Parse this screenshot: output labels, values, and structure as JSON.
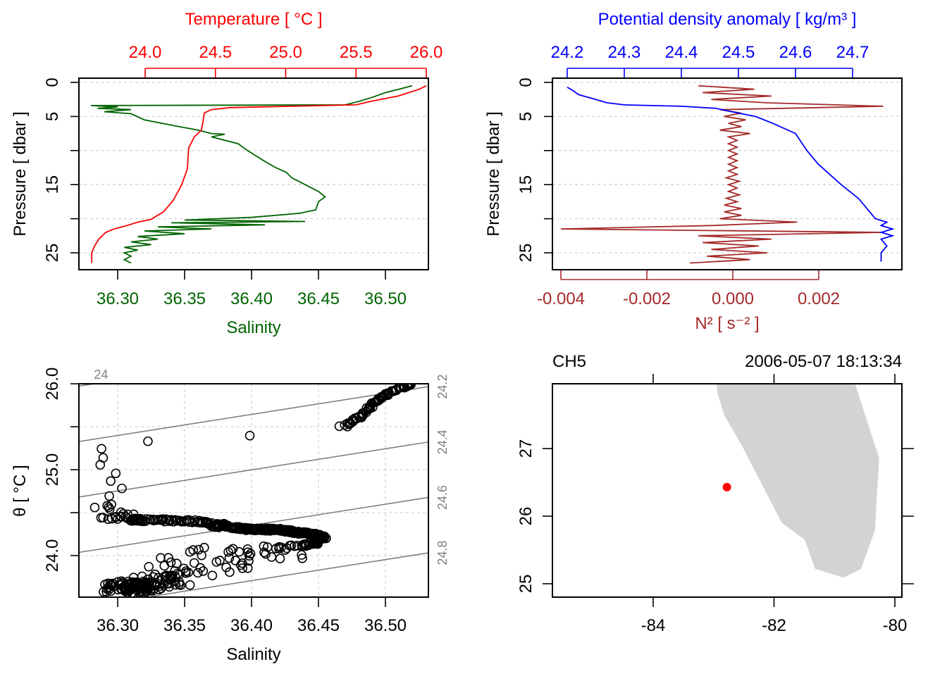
{
  "colors": {
    "temperature": "#FF0000",
    "salinity": "#006400",
    "density": "#0000FF",
    "n2": "#A52A2A",
    "isopycnal": "#808080",
    "land": "#D3D3D3",
    "station": "#FF0000"
  },
  "chart_data": [
    {
      "type": "line",
      "title": "Temperature [ °C ]",
      "xlabel_top": "Temperature [ °C ]",
      "xlabel_bottom": "Salinity",
      "ylabel": "Pressure [ dbar ]",
      "temperature_ticks": [
        "24.0",
        "24.5",
        "25.0",
        "25.5",
        "26.0"
      ],
      "salinity_ticks": [
        "36.30",
        "36.35",
        "36.40",
        "36.45",
        "36.50"
      ],
      "pressure_ticks": [
        "0",
        "5",
        "15",
        "25"
      ],
      "ylim": [
        27,
        0
      ],
      "series": [
        {
          "name": "Temperature",
          "axis": "top",
          "points": [
            [
              0.5,
              26.0
            ],
            [
              1,
              25.95
            ],
            [
              2,
              25.8
            ],
            [
              2.8,
              25.6
            ],
            [
              3.3,
              25.5
            ],
            [
              3.7,
              24.6
            ],
            [
              4,
              24.47
            ],
            [
              4.5,
              24.42
            ],
            [
              6,
              24.41
            ],
            [
              7,
              24.4
            ],
            [
              8,
              24.35
            ],
            [
              9.6,
              24.31
            ],
            [
              12.7,
              24.3
            ],
            [
              15,
              24.26
            ],
            [
              17.3,
              24.2
            ],
            [
              19,
              24.13
            ],
            [
              20.1,
              24.04
            ],
            [
              20.5,
              23.95
            ],
            [
              21,
              23.87
            ],
            [
              21.5,
              23.78
            ],
            [
              22,
              23.72
            ],
            [
              23,
              23.67
            ],
            [
              24,
              23.64
            ],
            [
              25,
              23.62
            ],
            [
              26.5,
              23.62
            ]
          ]
        },
        {
          "name": "Salinity",
          "axis": "bottom",
          "points": [
            [
              0.5,
              36.52
            ],
            [
              1,
              36.51
            ],
            [
              1.5,
              36.5
            ],
            [
              2.2,
              36.49
            ],
            [
              2.8,
              36.48
            ],
            [
              3.3,
              36.47
            ],
            [
              3.4,
              36.28
            ],
            [
              3.6,
              36.3
            ],
            [
              3.8,
              36.285
            ],
            [
              4,
              36.31
            ],
            [
              4.3,
              36.29
            ],
            [
              4.6,
              36.31
            ],
            [
              5.5,
              36.32
            ],
            [
              6.5,
              36.346
            ],
            [
              7,
              36.36
            ],
            [
              7.5,
              36.37
            ],
            [
              7.6,
              36.38
            ],
            [
              8,
              36.37
            ],
            [
              9,
              36.39
            ],
            [
              10,
              36.397
            ],
            [
              11.6,
              36.41
            ],
            [
              12.5,
              36.418
            ],
            [
              13.2,
              36.426
            ],
            [
              14,
              36.43
            ],
            [
              15,
              36.44
            ],
            [
              16,
              36.45
            ],
            [
              16.8,
              36.455
            ],
            [
              17.5,
              36.45
            ],
            [
              18.7,
              36.448
            ],
            [
              19.2,
              36.436
            ],
            [
              19.8,
              36.4
            ],
            [
              20.2,
              36.35
            ],
            [
              20.4,
              36.44
            ],
            [
              20.6,
              36.34
            ],
            [
              20.9,
              36.41
            ],
            [
              21.2,
              36.33
            ],
            [
              21.5,
              36.37
            ],
            [
              21.8,
              36.32
            ],
            [
              22.2,
              36.35
            ],
            [
              22.6,
              36.315
            ],
            [
              23,
              36.33
            ],
            [
              23.4,
              36.31
            ],
            [
              23.8,
              36.325
            ],
            [
              24.2,
              36.305
            ],
            [
              24.6,
              36.315
            ],
            [
              25,
              36.305
            ],
            [
              25.5,
              36.31
            ],
            [
              26,
              36.305
            ],
            [
              26.5,
              36.31
            ]
          ]
        }
      ]
    },
    {
      "type": "line",
      "xlabel_top": "Potential density anomaly [ kg/m³ ]",
      "xlabel_bottom": "N² [ s⁻² ]",
      "ylabel": "Pressure [ dbar ]",
      "density_ticks": [
        "24.2",
        "24.3",
        "24.4",
        "24.5",
        "24.6",
        "24.7"
      ],
      "n2_ticks": [
        "-0.004",
        "-0.002",
        "0.000",
        "0.002"
      ],
      "pressure_ticks": [
        "0",
        "5",
        "15",
        "25"
      ],
      "series": [
        {
          "name": "Potential density anomaly",
          "axis": "top",
          "points": [
            [
              0.7,
              24.2
            ],
            [
              1.2,
              24.21
            ],
            [
              1.8,
              24.22
            ],
            [
              2.5,
              24.25
            ],
            [
              3,
              24.27
            ],
            [
              3.3,
              24.3
            ],
            [
              3.5,
              24.4
            ],
            [
              3.8,
              24.46
            ],
            [
              4.5,
              24.5
            ],
            [
              5,
              24.53
            ],
            [
              6,
              24.56
            ],
            [
              7.5,
              24.6
            ],
            [
              10,
              24.62
            ],
            [
              12,
              24.64
            ],
            [
              13.5,
              24.66
            ],
            [
              15,
              24.68
            ],
            [
              17,
              24.71
            ],
            [
              18,
              24.72
            ],
            [
              19,
              24.73
            ],
            [
              20,
              24.74
            ],
            [
              20.5,
              24.76
            ],
            [
              21,
              24.75
            ],
            [
              21.5,
              24.77
            ],
            [
              22,
              24.75
            ],
            [
              22.5,
              24.77
            ],
            [
              23,
              24.75
            ],
            [
              24,
              24.76
            ],
            [
              25,
              24.75
            ],
            [
              26.3,
              24.75
            ]
          ]
        },
        {
          "name": "N2",
          "axis": "bottom",
          "pressure_start": 0.5,
          "pressure_step": 0.5,
          "values": [
            -0.0008,
            0.0005,
            -0.0007,
            0.0009,
            -0.0005,
            0.0008,
            0.0035,
            -0.0003,
            0.0002,
            -0.0002,
            0.0003,
            -0.0001,
            0.0002,
            -0.0003,
            0.0004,
            -0.0001,
            0.0001,
            -0.0001,
            0.0001,
            -0.0001,
            0.0001,
            -0.0001,
            0.0001,
            -0.0001,
            0.0001,
            -0.0001,
            0.0001,
            -0.00015,
            0.00015,
            -0.0001,
            0.0001,
            -0.0001,
            0.00015,
            -0.00015,
            0.0001,
            -0.0002,
            0.0002,
            -0.0002,
            0.0002,
            -0.0003,
            0.0015,
            -0.0005,
            -0.004,
            0.0035,
            -0.0008,
            0.0009,
            -0.0007,
            0.0006,
            -0.0005,
            0.0008,
            -0.0006,
            0.0004,
            -0.001
          ]
        }
      ]
    },
    {
      "type": "scatter",
      "x": "Salinity (from profile)",
      "y": "Potential temperature (from profile)",
      "xlabel": "Salinity",
      "ylabel": "θ [ °C ]",
      "salinity_ticks": [
        "36.30",
        "36.35",
        "36.40",
        "36.45",
        "36.50"
      ],
      "theta_ticks": [
        "24.0",
        "25.0",
        "26.0"
      ],
      "isopycnal_levels": [
        "24",
        "24.2",
        "24.4",
        "24.6",
        "24.8"
      ],
      "xlim": [
        36.271,
        36.532
      ],
      "ylim": [
        23.52,
        26.0
      ]
    },
    {
      "type": "map",
      "station": "CH5",
      "datetime": "2006-05-07 18:13:34",
      "lon_ticks": [
        "-84",
        "-82",
        "-80"
      ],
      "lat_ticks": [
        "25",
        "26",
        "27"
      ],
      "station_position": {
        "lon": -82.78,
        "lat": 26.43
      },
      "coastline": [
        [
          -82.95,
          28.1
        ],
        [
          -82.95,
          27.96
        ],
        [
          -82.94,
          27.83
        ],
        [
          -82.82,
          27.49
        ],
        [
          -82.53,
          27.04
        ],
        [
          -82.19,
          26.45
        ],
        [
          -81.87,
          25.9
        ],
        [
          -81.49,
          25.65
        ],
        [
          -81.32,
          25.22
        ],
        [
          -80.85,
          25.09
        ],
        [
          -80.56,
          25.22
        ],
        [
          -80.33,
          25.79
        ],
        [
          -80.26,
          26.86
        ],
        [
          -80.66,
          27.96
        ],
        [
          -80.7,
          28.1
        ]
      ]
    }
  ]
}
